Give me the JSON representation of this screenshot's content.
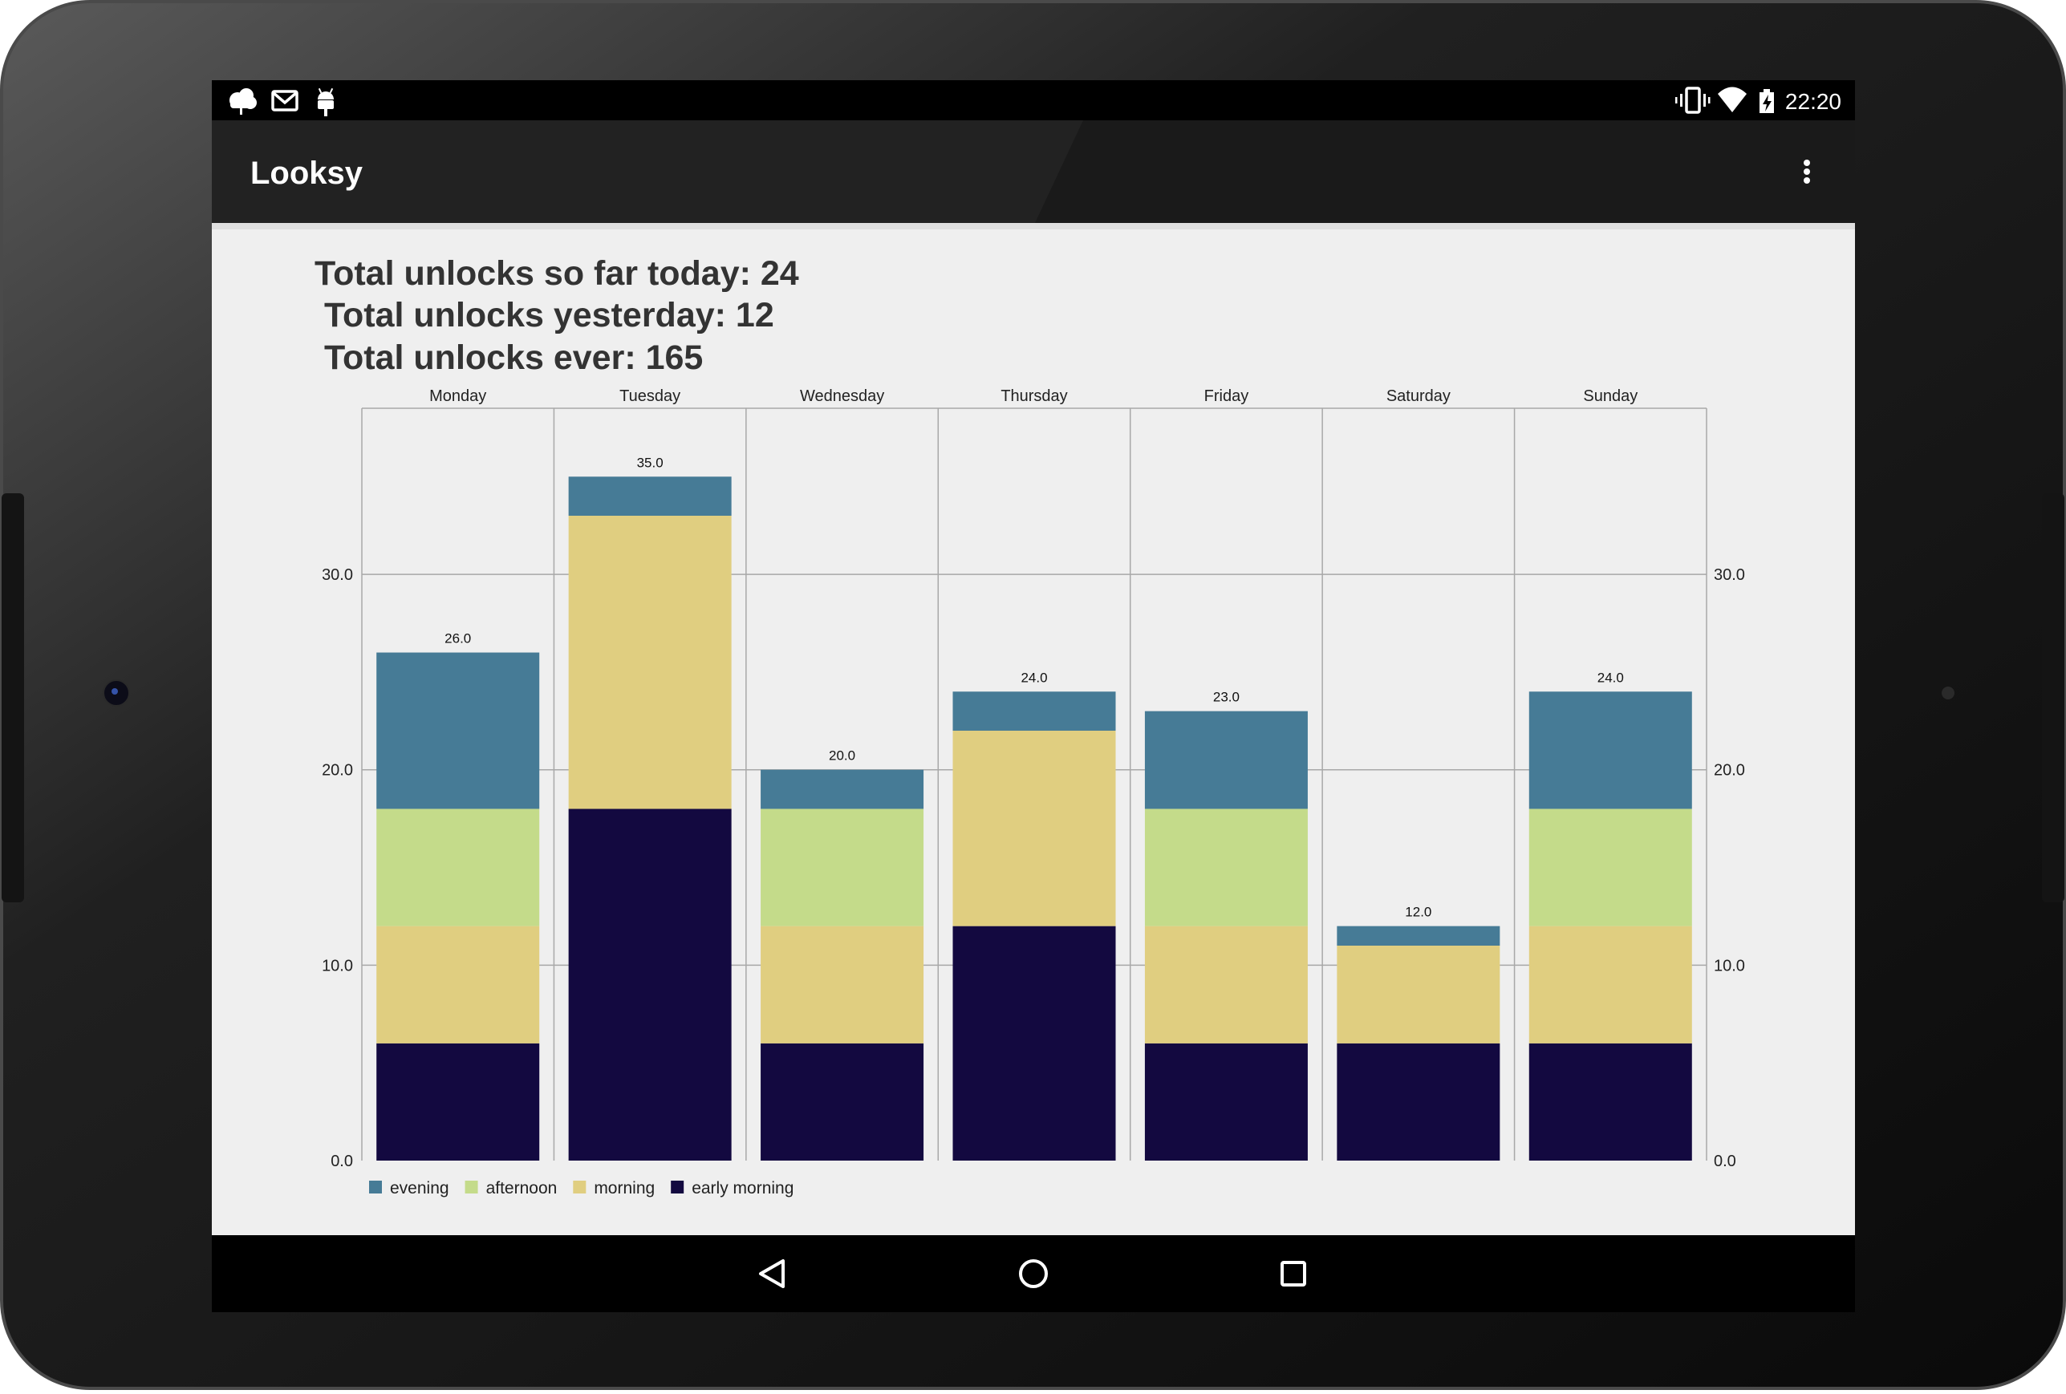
{
  "status_bar": {
    "time": "22:20",
    "left_icons": [
      "cloud-icon",
      "gmail-icon",
      "android-icon"
    ],
    "right_icons": [
      "vibrate-icon",
      "wifi-icon",
      "battery-charging-icon"
    ]
  },
  "app_bar": {
    "title": "Looksy",
    "menu_icon": "overflow-menu-icon"
  },
  "summary": {
    "line1": "Total unlocks so far today: 24",
    "line2": " Total unlocks yesterday: 12",
    "line3": " Total unlocks ever: 165"
  },
  "chart_data": {
    "type": "bar",
    "stacked": true,
    "categories": [
      "Monday",
      "Tuesday",
      "Wednesday",
      "Thursday",
      "Friday",
      "Saturday",
      "Sunday"
    ],
    "series": [
      {
        "name": "early morning",
        "color": "#130940",
        "values": [
          6,
          18,
          6,
          12,
          6,
          6,
          6
        ]
      },
      {
        "name": "morning",
        "color": "#e0ce80",
        "values": [
          6,
          15,
          6,
          10,
          6,
          5,
          6
        ]
      },
      {
        "name": "afternoon",
        "color": "#c4db8a",
        "values": [
          6,
          0,
          6,
          0,
          6,
          0,
          6
        ]
      },
      {
        "name": "evening",
        "color": "#467b96",
        "values": [
          8,
          2,
          2,
          2,
          5,
          1,
          6
        ]
      }
    ],
    "totals": [
      "26.0",
      "35.0",
      "20.0",
      "24.0",
      "23.0",
      "12.0",
      "24.0"
    ],
    "y_ticks": [
      "0.0",
      "10.0",
      "20.0",
      "30.0"
    ],
    "ylim": [
      0,
      38.5
    ],
    "grid": true,
    "legend_position": "bottom-left",
    "legend_order": [
      "evening",
      "afternoon",
      "morning",
      "early morning"
    ]
  },
  "nav_bar": {
    "back_icon": "back-triangle-icon",
    "home_icon": "home-circle-icon",
    "recents_icon": "recents-square-icon"
  },
  "colors": {
    "status_bar": "#000000",
    "app_bar": "#212121",
    "content_bg": "#efefef",
    "device_frame": "#1a1a1a"
  }
}
